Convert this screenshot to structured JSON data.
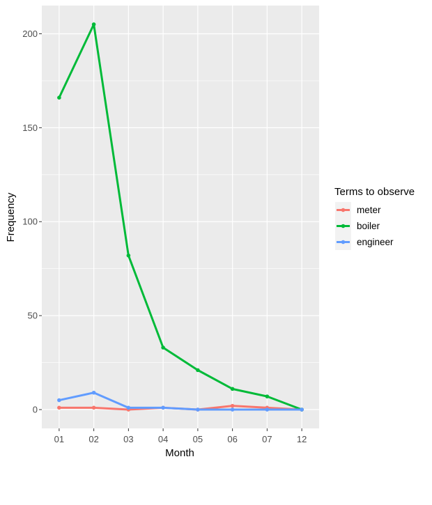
{
  "chart_data": {
    "type": "line",
    "xlabel": "Month",
    "ylabel": "Frequency",
    "categories": [
      "01",
      "02",
      "03",
      "04",
      "05",
      "06",
      "07",
      "12"
    ],
    "yticks": [
      0,
      50,
      100,
      150,
      200
    ],
    "ylim": [
      -10,
      215
    ],
    "grid": true,
    "legend": {
      "title": "Terms to observe",
      "placement": "right"
    },
    "series": [
      {
        "name": "meter",
        "color": "#F8766D",
        "values": [
          1,
          1,
          0,
          1,
          0,
          2,
          1,
          0
        ]
      },
      {
        "name": "boiler",
        "color": "#00BA38",
        "values": [
          166,
          205,
          82,
          33,
          21,
          11,
          7,
          0
        ]
      },
      {
        "name": "engineer",
        "color": "#619CFF",
        "values": [
          5,
          9,
          1,
          1,
          0,
          0,
          0,
          0
        ]
      }
    ]
  }
}
